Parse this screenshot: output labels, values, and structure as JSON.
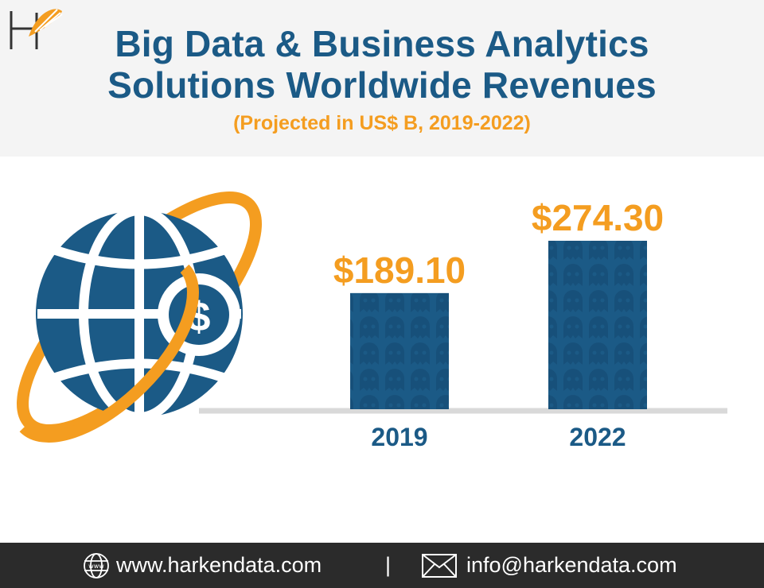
{
  "header": {
    "title_line1": "Big Data & Business Analytics",
    "title_line2": "Solutions Worldwide Revenues",
    "subtitle": "(Projected in US$ B, 2019-2022)"
  },
  "colors": {
    "primary_blue": "#1b5a86",
    "accent_orange": "#f49d20",
    "header_bg": "#f4f4f4",
    "footer_bg": "#2b2b2b",
    "axis": "#d9d9d9"
  },
  "icons": {
    "logo": "harken-h-logo-icon",
    "illustration": "globe-dollar-orbit-icon",
    "website": "www-globe-icon",
    "email": "envelope-icon"
  },
  "chart_data": {
    "type": "bar",
    "categories": [
      "2019",
      "2022"
    ],
    "values": [
      189.1,
      274.3
    ],
    "value_labels": [
      "$189.10",
      "$274.30"
    ],
    "title": "Big Data & Business Analytics Solutions Worldwide Revenues",
    "subtitle": "(Projected in US$ B, 2019-2022)",
    "xlabel": "",
    "ylabel": "",
    "ylim": [
      0,
      274.3
    ],
    "grid": false,
    "legend": "none",
    "bar_color": "#1b5a86",
    "label_color": "#f49d20"
  },
  "footer": {
    "website": "www.harkendata.com",
    "separator": "|",
    "email": "info@harkendata.com"
  }
}
